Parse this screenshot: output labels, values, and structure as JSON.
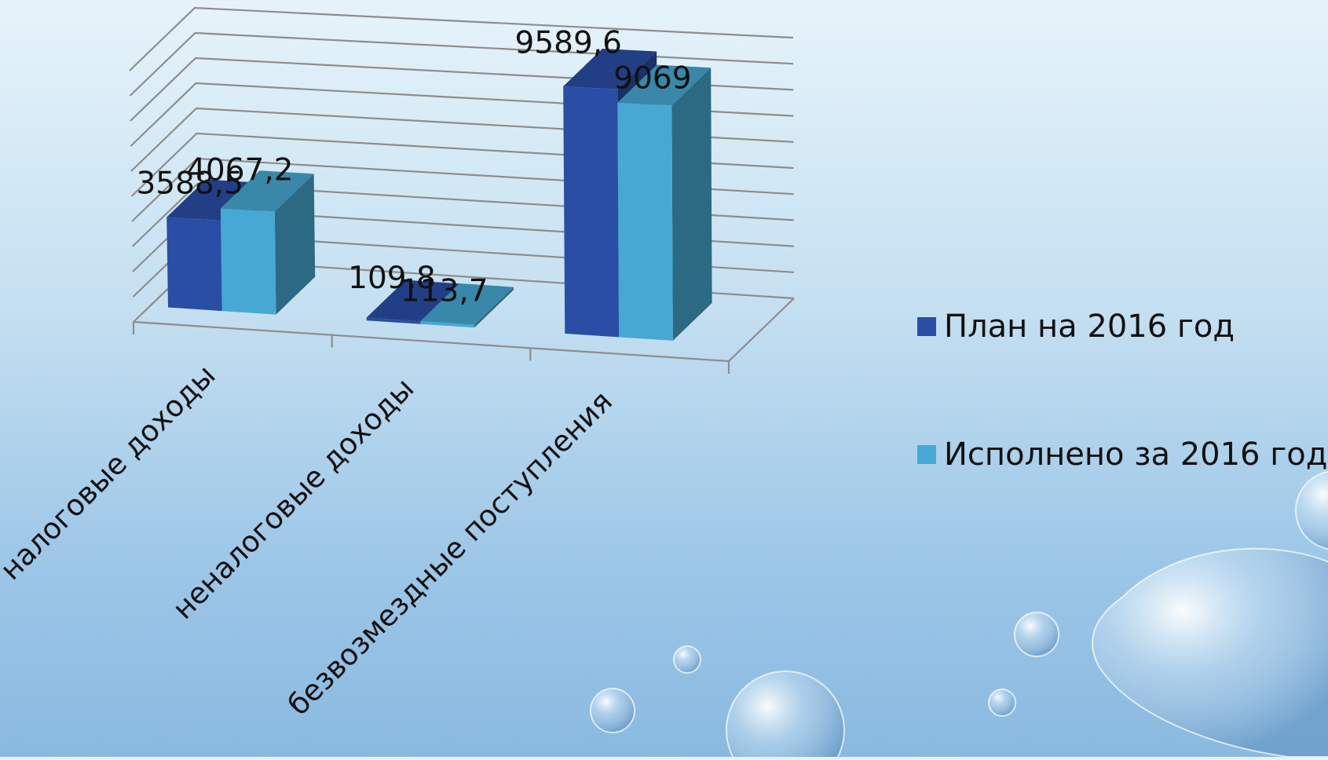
{
  "chart_data": {
    "type": "bar",
    "categories": [
      "налоговые доходы",
      "неналоговые доходы",
      "безвозмездные поступления"
    ],
    "series": [
      {
        "name": "План на 2016 год",
        "values": [
          3588.5,
          109.8,
          9589.6
        ],
        "labels": [
          "3588,5",
          "109,8",
          "9589,6"
        ],
        "color": "#2a4ea6"
      },
      {
        "name": "Исполнено за 2016 год",
        "values": [
          4067.2,
          113.7,
          9069
        ],
        "labels": [
          "4067,2",
          "113,7",
          "9069"
        ],
        "color": "#47a9d3"
      }
    ],
    "ylim": [
      0,
      10000
    ],
    "grid": true,
    "legend_position": "right"
  }
}
